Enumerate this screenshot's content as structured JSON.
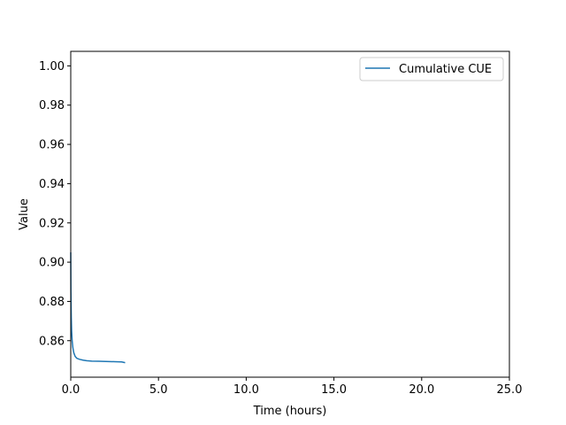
{
  "chart_data": {
    "type": "line",
    "xlabel": "Time (hours)",
    "ylabel": "Value",
    "xlim": [
      0,
      25
    ],
    "ylim": [
      0.8414,
      1.0074
    ],
    "xticks": [
      "0.0",
      "5.0",
      "10.0",
      "15.0",
      "20.0",
      "25.0"
    ],
    "xtick_values": [
      0,
      5,
      10,
      15,
      20,
      25
    ],
    "yticks": [
      "0.86",
      "0.88",
      "0.90",
      "0.92",
      "0.94",
      "0.96",
      "0.98",
      "1.00"
    ],
    "ytick_values": [
      0.86,
      0.88,
      0.9,
      0.92,
      0.94,
      0.96,
      0.98,
      1.0
    ],
    "grid": false,
    "legend_position": "top-right",
    "series": [
      {
        "name": "Cumulative CUE",
        "color": "#1f77b4",
        "x": [
          0.0,
          0.01,
          0.03,
          0.05,
          0.08,
          0.12,
          0.17,
          0.25,
          0.35,
          0.5,
          0.7,
          0.9,
          1.2,
          1.6,
          2.0,
          2.5,
          2.9,
          3.1
        ],
        "y": [
          0.905,
          0.885,
          0.872,
          0.865,
          0.86,
          0.8565,
          0.854,
          0.852,
          0.851,
          0.8505,
          0.8501,
          0.8498,
          0.8496,
          0.8495,
          0.8494,
          0.8493,
          0.8492,
          0.8488
        ]
      }
    ]
  }
}
